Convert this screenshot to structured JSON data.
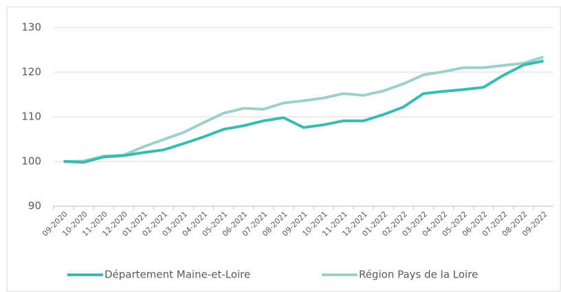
{
  "chart_data": {
    "type": "line",
    "categories": [
      "09-2020",
      "10-2020",
      "11-2020",
      "12-2020",
      "01-2021",
      "02-2021",
      "03-2021",
      "04-2021",
      "05-2021",
      "06-2021",
      "07-2021",
      "08-2021",
      "09-2021",
      "10-2021",
      "11-2021",
      "12-2021",
      "01-2022",
      "02-2022",
      "03-2022",
      "04-2022",
      "05-2022",
      "06-2022",
      "07-2022",
      "08-2022",
      "09-2022"
    ],
    "series": [
      {
        "name": "Département Maine-et-Loire",
        "color": "#38bcb0",
        "values": [
          100,
          99.8,
          101,
          101.3,
          102,
          102.6,
          104,
          105.5,
          107.2,
          108,
          109.1,
          109.8,
          107.6,
          108.2,
          109.1,
          109.1,
          110.5,
          112.2,
          115.2,
          115.7,
          116.1,
          116.6,
          119.3,
          121.6,
          122.5
        ]
      },
      {
        "name": "Région Pays de la Loire",
        "color": "#9dd0cd",
        "values": [
          100,
          100.1,
          101.2,
          101.4,
          103.3,
          104.9,
          106.5,
          108.7,
          110.8,
          111.9,
          111.7,
          113.1,
          113.6,
          114.2,
          115.2,
          114.8,
          115.8,
          117.4,
          119.4,
          120.1,
          121,
          121,
          121.5,
          122,
          123.4
        ]
      }
    ],
    "ylim": [
      90,
      130
    ],
    "yticks": [
      90,
      100,
      110,
      120,
      130
    ],
    "grid": true,
    "legend": "bottom"
  }
}
